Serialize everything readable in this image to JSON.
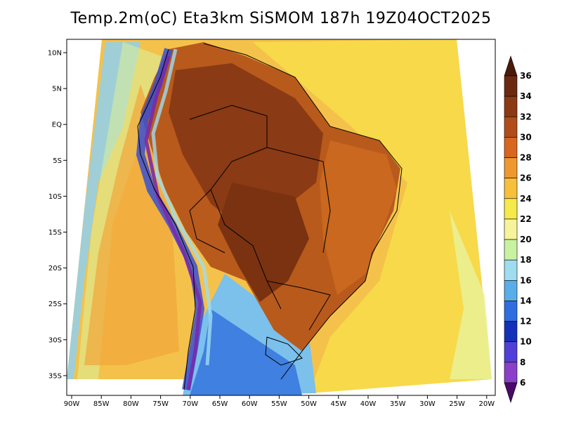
{
  "title": "Temp.2m(oC) Eta3km SiSMOM 187h 19Z04OCT2025",
  "lat_ticks": [
    "10N",
    "5N",
    "EQ",
    "5S",
    "10S",
    "15S",
    "20S",
    "25S",
    "30S",
    "35S"
  ],
  "lon_ticks": [
    "90W",
    "85W",
    "80W",
    "75W",
    "70W",
    "65W",
    "60W",
    "55W",
    "50W",
    "45W",
    "40W",
    "35W",
    "30W",
    "25W",
    "20W"
  ],
  "colorbar": {
    "labels": [
      "36",
      "34",
      "32",
      "30",
      "28",
      "26",
      "24",
      "22",
      "20",
      "18",
      "16",
      "14",
      "12",
      "10",
      "8",
      "6"
    ],
    "colors": [
      "#6b2a10",
      "#8c3a14",
      "#b04d1a",
      "#d9661e",
      "#f09830",
      "#f7bf3a",
      "#f6ea4a",
      "#f7f39a",
      "#c9f2a0",
      "#9fdcf0",
      "#5aaee8",
      "#2f6ee0",
      "#1530b8",
      "#5040d8",
      "#8a40c8",
      "#6a1a8a"
    ],
    "top_tip_color": "#4a1a0a",
    "bottom_tip_color": "#4a0a6a"
  }
}
